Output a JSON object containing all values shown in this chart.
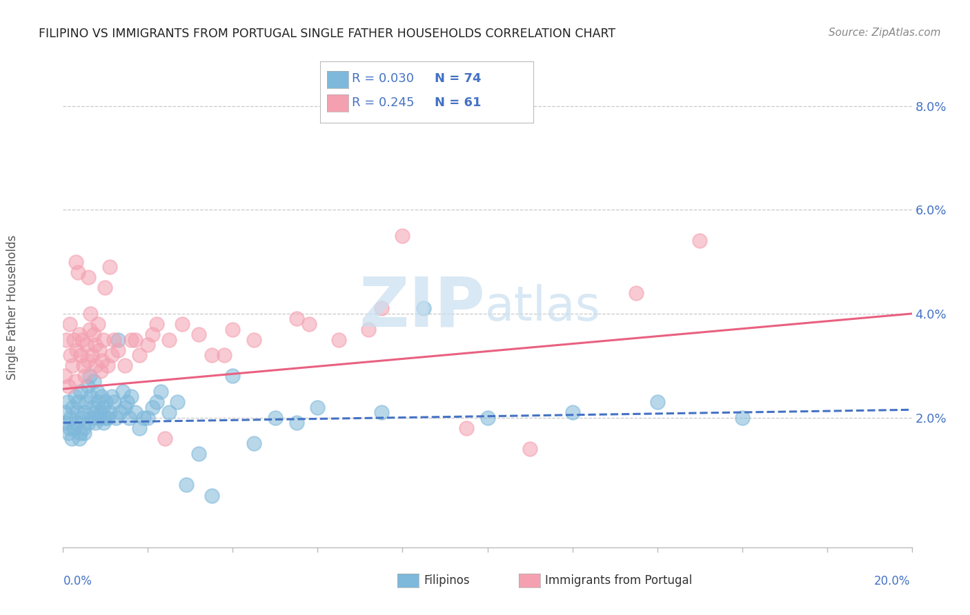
{
  "title": "FILIPINO VS IMMIGRANTS FROM PORTUGAL SINGLE FATHER HOUSEHOLDS CORRELATION CHART",
  "source": "Source: ZipAtlas.com",
  "ylabel": "Single Father Households",
  "xlim": [
    0.0,
    20.0
  ],
  "ylim": [
    -0.5,
    8.5
  ],
  "ymin_display": 0.0,
  "ymax_display": 8.0,
  "legend_r1": "R = 0.030",
  "legend_n1": "N = 74",
  "legend_r2": "R = 0.245",
  "legend_n2": "N = 61",
  "color_filipino": "#7EB8DA",
  "color_portugal": "#F4A0B0",
  "color_filipino_line": "#4472C4",
  "color_portugal_line": "#E96080",
  "color_title": "#222222",
  "color_tick": "#4472C4",
  "color_grid": "#C8C8C8",
  "background_color": "#FFFFFF",
  "watermark_color": "#C8DFF0",
  "filipino_x": [
    0.05,
    0.07,
    0.1,
    0.12,
    0.15,
    0.18,
    0.2,
    0.22,
    0.25,
    0.28,
    0.3,
    0.33,
    0.35,
    0.38,
    0.4,
    0.42,
    0.45,
    0.48,
    0.5,
    0.52,
    0.55,
    0.58,
    0.6,
    0.63,
    0.65,
    0.68,
    0.7,
    0.72,
    0.75,
    0.78,
    0.8,
    0.83,
    0.85,
    0.88,
    0.9,
    0.93,
    0.95,
    0.98,
    1.0,
    1.05,
    1.1,
    1.15,
    1.2,
    1.25,
    1.3,
    1.35,
    1.4,
    1.45,
    1.5,
    1.55,
    1.6,
    1.7,
    1.8,
    1.9,
    2.0,
    2.1,
    2.2,
    2.3,
    2.5,
    2.7,
    2.9,
    3.2,
    3.5,
    4.0,
    4.5,
    5.0,
    5.5,
    6.0,
    7.5,
    8.5,
    10.0,
    12.0,
    14.0,
    16.0
  ],
  "filipino_y": [
    2.1,
    1.9,
    2.3,
    1.7,
    1.8,
    2.0,
    1.6,
    2.2,
    1.8,
    2.4,
    1.9,
    2.1,
    2.3,
    1.6,
    1.7,
    2.5,
    2.0,
    1.8,
    1.7,
    2.1,
    2.3,
    2.6,
    1.9,
    2.8,
    2.4,
    2.0,
    2.2,
    2.7,
    1.9,
    2.1,
    2.5,
    2.3,
    2.0,
    2.1,
    2.4,
    2.2,
    1.9,
    2.0,
    2.3,
    2.0,
    2.1,
    2.4,
    2.3,
    2.0,
    3.5,
    2.1,
    2.5,
    2.2,
    2.3,
    2.0,
    2.4,
    2.1,
    1.8,
    2.0,
    2.0,
    2.2,
    2.3,
    2.5,
    2.1,
    2.3,
    0.7,
    1.3,
    0.5,
    2.8,
    1.5,
    2.0,
    1.9,
    2.2,
    2.1,
    4.1,
    2.0,
    2.1,
    2.3,
    2.0
  ],
  "portugal_x": [
    0.05,
    0.08,
    0.12,
    0.15,
    0.18,
    0.22,
    0.25,
    0.28,
    0.32,
    0.35,
    0.38,
    0.42,
    0.45,
    0.48,
    0.52,
    0.55,
    0.58,
    0.62,
    0.65,
    0.68,
    0.72,
    0.75,
    0.78,
    0.82,
    0.85,
    0.88,
    0.92,
    0.95,
    0.98,
    1.05,
    1.1,
    1.15,
    1.2,
    1.3,
    1.45,
    1.6,
    1.8,
    2.0,
    2.2,
    2.5,
    2.8,
    3.2,
    3.5,
    4.0,
    4.5,
    5.5,
    7.5,
    8.0,
    9.5,
    11.0,
    13.5,
    15.0,
    3.8,
    2.1,
    5.8,
    6.5,
    7.2,
    0.3,
    0.6,
    1.7,
    2.4
  ],
  "portugal_y": [
    2.8,
    3.5,
    2.6,
    3.8,
    3.2,
    3.0,
    3.5,
    2.7,
    3.3,
    4.8,
    3.6,
    3.2,
    3.5,
    3.0,
    2.8,
    3.4,
    3.1,
    3.7,
    4.0,
    3.2,
    3.6,
    3.4,
    3.0,
    3.8,
    3.3,
    2.9,
    3.1,
    3.5,
    4.5,
    3.0,
    4.9,
    3.2,
    3.5,
    3.3,
    3.0,
    3.5,
    3.2,
    3.4,
    3.8,
    3.5,
    3.8,
    3.6,
    3.2,
    3.7,
    3.5,
    3.9,
    4.1,
    5.5,
    1.8,
    1.4,
    4.4,
    5.4,
    3.2,
    3.6,
    3.8,
    3.5,
    3.7,
    5.0,
    4.7,
    3.5,
    1.6
  ],
  "fil_trend_x0": 0.0,
  "fil_trend_y0": 1.9,
  "fil_trend_x1": 20.0,
  "fil_trend_y1": 2.15,
  "port_trend_x0": 0.0,
  "port_trend_y0": 2.55,
  "port_trend_x1": 20.0,
  "port_trend_y1": 4.0
}
